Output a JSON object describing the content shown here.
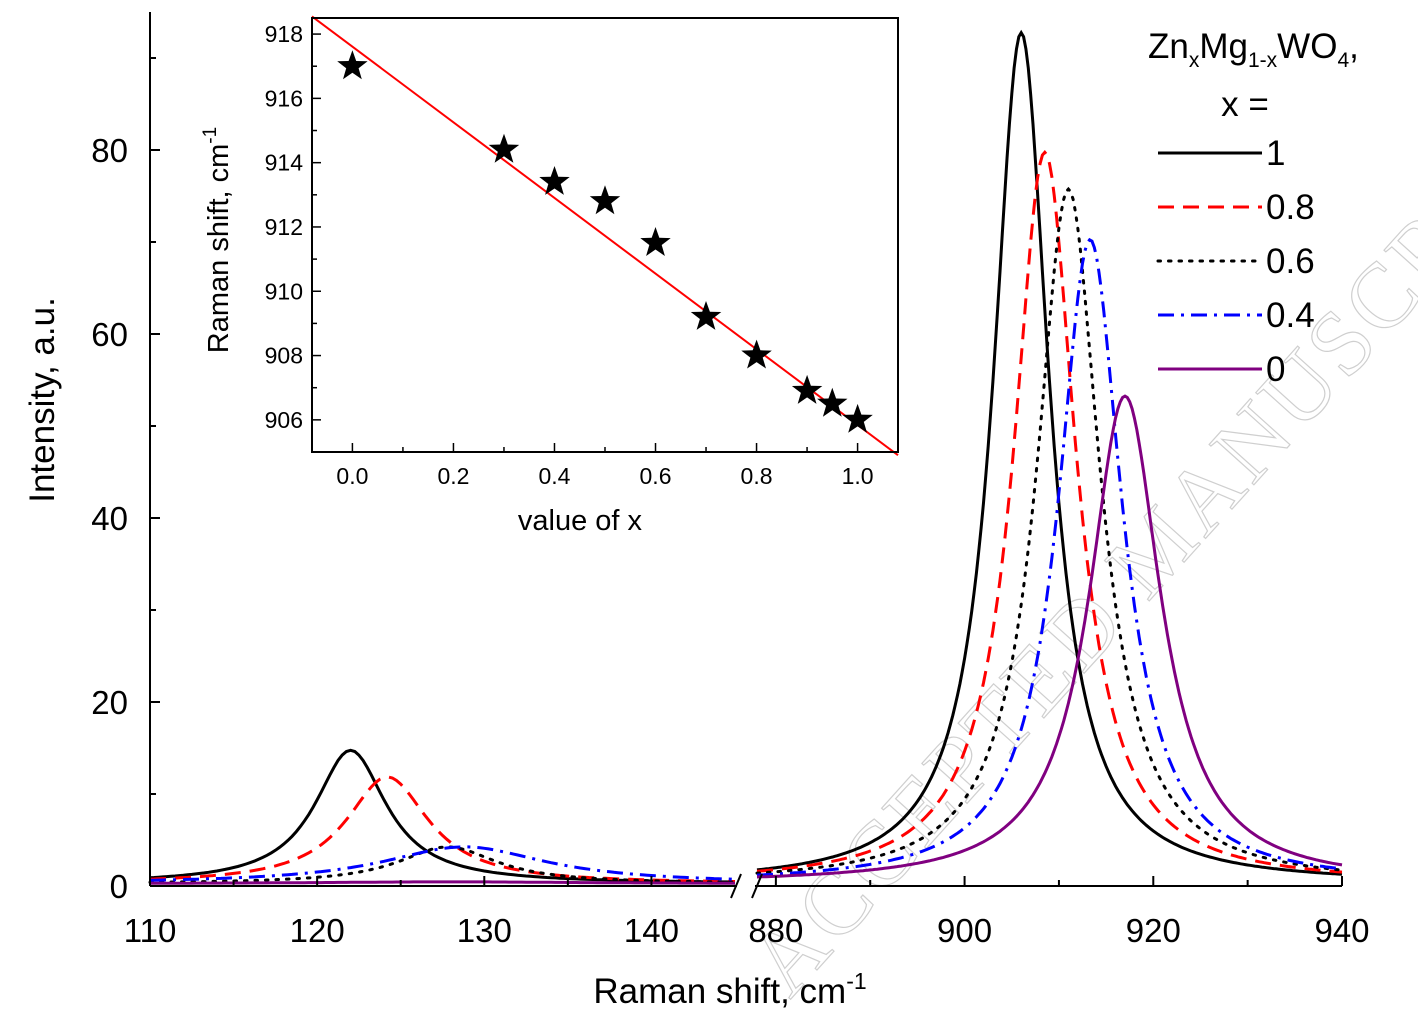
{
  "watermark": "ACCEPTED MANUSCRIPT",
  "chart_data": [
    {
      "type": "line",
      "xlabel_prefix": "Raman shift, cm",
      "xlabel_superscript": "-1",
      "ylabel": "Intensity, a.u.",
      "broken_x_axis": true,
      "x_segments": [
        {
          "xlim": [
            110,
            145
          ],
          "ticks": [
            110,
            120,
            130,
            140
          ]
        },
        {
          "xlim": [
            878,
            940
          ],
          "ticks": [
            880,
            900,
            920,
            940
          ]
        }
      ],
      "ylim": [
        0,
        95
      ],
      "y_ticks": [
        0,
        20,
        40,
        60,
        80
      ],
      "legend_title": {
        "formula_parts": [
          {
            "text": "Zn",
            "sub": false
          },
          {
            "text": "x",
            "sub": true
          },
          {
            "text": "Mg",
            "sub": false
          },
          {
            "text": "1-x",
            "sub": true
          },
          {
            "text": "WO",
            "sub": false
          },
          {
            "text": "4",
            "sub": true
          },
          {
            "text": ",",
            "sub": false
          }
        ],
        "line2": "x ="
      },
      "legend_position": "top-right",
      "series": [
        {
          "name": "1",
          "color": "#000000",
          "dash": "solid",
          "low": {
            "center": 122,
            "height": 14.5,
            "width": 2.6
          },
          "high": {
            "center": 906,
            "height": 92.5,
            "width": 3.6
          }
        },
        {
          "name": "0.8",
          "color": "#ff0000",
          "dash": "dashed",
          "low": {
            "center": 124.2,
            "height": 11.6,
            "width": 3.0
          },
          "high": {
            "center": 908.5,
            "height": 79.5,
            "width": 4.0
          }
        },
        {
          "name": "0.6",
          "color": "#000000",
          "dash": "dotted",
          "low": {
            "center": 127.8,
            "height": 4.0,
            "width": 3.6
          },
          "high": {
            "center": 911,
            "height": 75.5,
            "width": 4.1
          }
        },
        {
          "name": "0.4",
          "color": "#0000ff",
          "dash": "dashdot",
          "low": {
            "center": 128.8,
            "height": 4.0,
            "width": 6.0
          },
          "high": {
            "center": 913.3,
            "height": 70.0,
            "width": 4.1
          }
        },
        {
          "name": "0",
          "color": "#800080",
          "dash": "solid",
          "low": {
            "center": 128,
            "height": 0.2,
            "width": 10
          },
          "high": {
            "center": 917,
            "height": 53.0,
            "width": 4.6
          }
        }
      ]
    },
    {
      "type": "scatter",
      "marker": "star",
      "xlabel": "value of x",
      "ylabel_prefix": "Raman shift, cm",
      "ylabel_superscript": "-1",
      "xlim": [
        -0.08,
        1.08
      ],
      "ylim": [
        905,
        918.5
      ],
      "x_ticks": [
        0.0,
        0.2,
        0.4,
        0.6,
        0.8,
        1.0
      ],
      "x_tick_labels": [
        "0.0",
        "0.2",
        "0.4",
        "0.6",
        "0.8",
        "1.0"
      ],
      "y_ticks": [
        906,
        908,
        910,
        912,
        914,
        916,
        918
      ],
      "points": [
        {
          "x": 0.0,
          "y": 917.0
        },
        {
          "x": 0.3,
          "y": 914.4
        },
        {
          "x": 0.4,
          "y": 913.4
        },
        {
          "x": 0.5,
          "y": 912.8
        },
        {
          "x": 0.6,
          "y": 911.5
        },
        {
          "x": 0.7,
          "y": 909.2
        },
        {
          "x": 0.8,
          "y": 908.0
        },
        {
          "x": 0.9,
          "y": 906.9
        },
        {
          "x": 0.95,
          "y": 906.5
        },
        {
          "x": 1.0,
          "y": 906.0
        }
      ],
      "fit_line": {
        "color": "#ff0000",
        "x": [
          -0.08,
          1.08
        ],
        "y": [
          918.55,
          904.9
        ]
      }
    }
  ]
}
